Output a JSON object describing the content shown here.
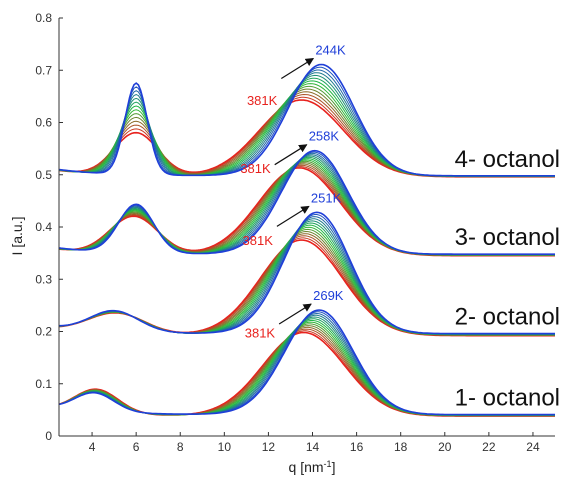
{
  "chart_data": {
    "type": "line",
    "title": "",
    "xlabel_base": "q [nm",
    "xlabel_sup": "-1",
    "xlabel_end": "]",
    "ylabel": "I [a.u.]",
    "xlim": [
      2.5,
      25
    ],
    "ylim": [
      0,
      0.8
    ],
    "xticks": [
      4,
      6,
      8,
      10,
      12,
      14,
      16,
      18,
      20,
      22,
      24
    ],
    "yticks": [
      0,
      0.1,
      0.2,
      0.3,
      0.4,
      0.5,
      0.6,
      0.7,
      0.8
    ],
    "grid": false,
    "color_scale": {
      "cold": "#1f3fd8",
      "mid": "#22c23a",
      "hot": "#e8221e"
    },
    "samples": [
      {
        "name": "1- octanol",
        "t_low_label": "269K",
        "t_high_label": "381K",
        "cold": {
          "baseline": 0.041,
          "pre_peak": [
            4.1,
            0.036,
            0.9
          ],
          "main_peak": [
            14.3,
            0.2,
            1.55
          ],
          "x": [
            2.5,
            4.1,
            8,
            12,
            14.3,
            18,
            25
          ],
          "y": [
            0.05,
            0.077,
            0.051,
            0.11,
            0.241,
            0.058,
            0.041
          ]
        },
        "hot": {
          "baseline": 0.038,
          "pre_peak": [
            4.2,
            0.046,
            1.0
          ],
          "main_peak": [
            13.6,
            0.16,
            1.85
          ],
          "x": [
            2.5,
            4.2,
            8,
            12,
            13.6,
            18,
            25
          ],
          "y": [
            0.058,
            0.084,
            0.06,
            0.16,
            0.198,
            0.06,
            0.038
          ]
        }
      },
      {
        "name": "2- octanol",
        "t_low_label": "251K",
        "t_high_label": "381K",
        "cold": {
          "baseline": 0.196,
          "pre_peak": [
            5.0,
            0.04,
            1.1
          ],
          "main_peak": [
            14.2,
            0.232,
            1.5
          ],
          "x": [
            2.5,
            5.0,
            8,
            12,
            14.2,
            18,
            25
          ],
          "y": [
            0.185,
            0.236,
            0.22,
            0.28,
            0.428,
            0.21,
            0.196
          ]
        },
        "hot": {
          "baseline": 0.192,
          "pre_peak": [
            5.1,
            0.04,
            1.3
          ],
          "main_peak": [
            13.5,
            0.183,
            1.85
          ],
          "x": [
            2.5,
            5.1,
            8,
            12,
            13.5,
            18,
            25
          ],
          "y": [
            0.2,
            0.236,
            0.228,
            0.31,
            0.376,
            0.21,
            0.192
          ]
        }
      },
      {
        "name": "3- octanol",
        "t_low_label": "258K",
        "t_high_label": "381K",
        "cold": {
          "baseline": 0.348,
          "pre_peak": [
            6.0,
            0.093,
            0.8
          ],
          "main_peak": [
            14.1,
            0.198,
            1.5
          ],
          "x": [
            2.5,
            6.0,
            9,
            12,
            14.1,
            18,
            25
          ],
          "y": [
            0.35,
            0.44,
            0.38,
            0.45,
            0.548,
            0.36,
            0.348
          ]
        },
        "hot": {
          "baseline": 0.345,
          "pre_peak": [
            5.9,
            0.073,
            1.1
          ],
          "main_peak": [
            13.4,
            0.168,
            1.85
          ],
          "x": [
            2.5,
            5.9,
            9,
            12,
            13.4,
            18,
            25
          ],
          "y": [
            0.365,
            0.428,
            0.39,
            0.47,
            0.517,
            0.36,
            0.345
          ]
        }
      },
      {
        "name": "4- octanol",
        "t_low_label": "244K",
        "t_high_label": "381K",
        "cold": {
          "baseline": 0.498,
          "pre_peak": [
            6.0,
            0.175,
            0.5
          ],
          "main_peak": [
            14.4,
            0.213,
            1.5
          ],
          "x": [
            2.5,
            6.0,
            9,
            12,
            14.4,
            18,
            25
          ],
          "y": [
            0.49,
            0.658,
            0.52,
            0.6,
            0.713,
            0.51,
            0.498
          ]
        },
        "hot": {
          "baseline": 0.496,
          "pre_peak": [
            6.0,
            0.082,
            1.0
          ],
          "main_peak": [
            13.5,
            0.147,
            1.9
          ],
          "x": [
            2.5,
            6.0,
            9,
            12,
            13.5,
            18,
            25
          ],
          "y": [
            0.51,
            0.597,
            0.535,
            0.62,
            0.648,
            0.505,
            0.496
          ]
        }
      }
    ],
    "curves_per_sample": 14
  }
}
